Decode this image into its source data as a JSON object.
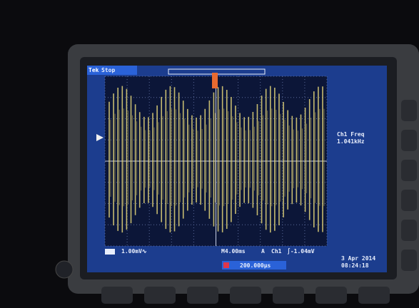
{
  "header": {
    "brand": "Tek",
    "status": "Stop"
  },
  "measurement": {
    "label": "Ch1 Freq",
    "value": "1.041kHz"
  },
  "footer": {
    "ch1_scale": "1.00mV∿",
    "timebase": "M4.00ms",
    "trigger_mode": "A",
    "trigger_source": "Ch1",
    "trigger_level": "∫-1.04mV",
    "horizontal_position": "200.000µs",
    "date": "3 Apr 2014",
    "time": "08:24:18"
  }
}
